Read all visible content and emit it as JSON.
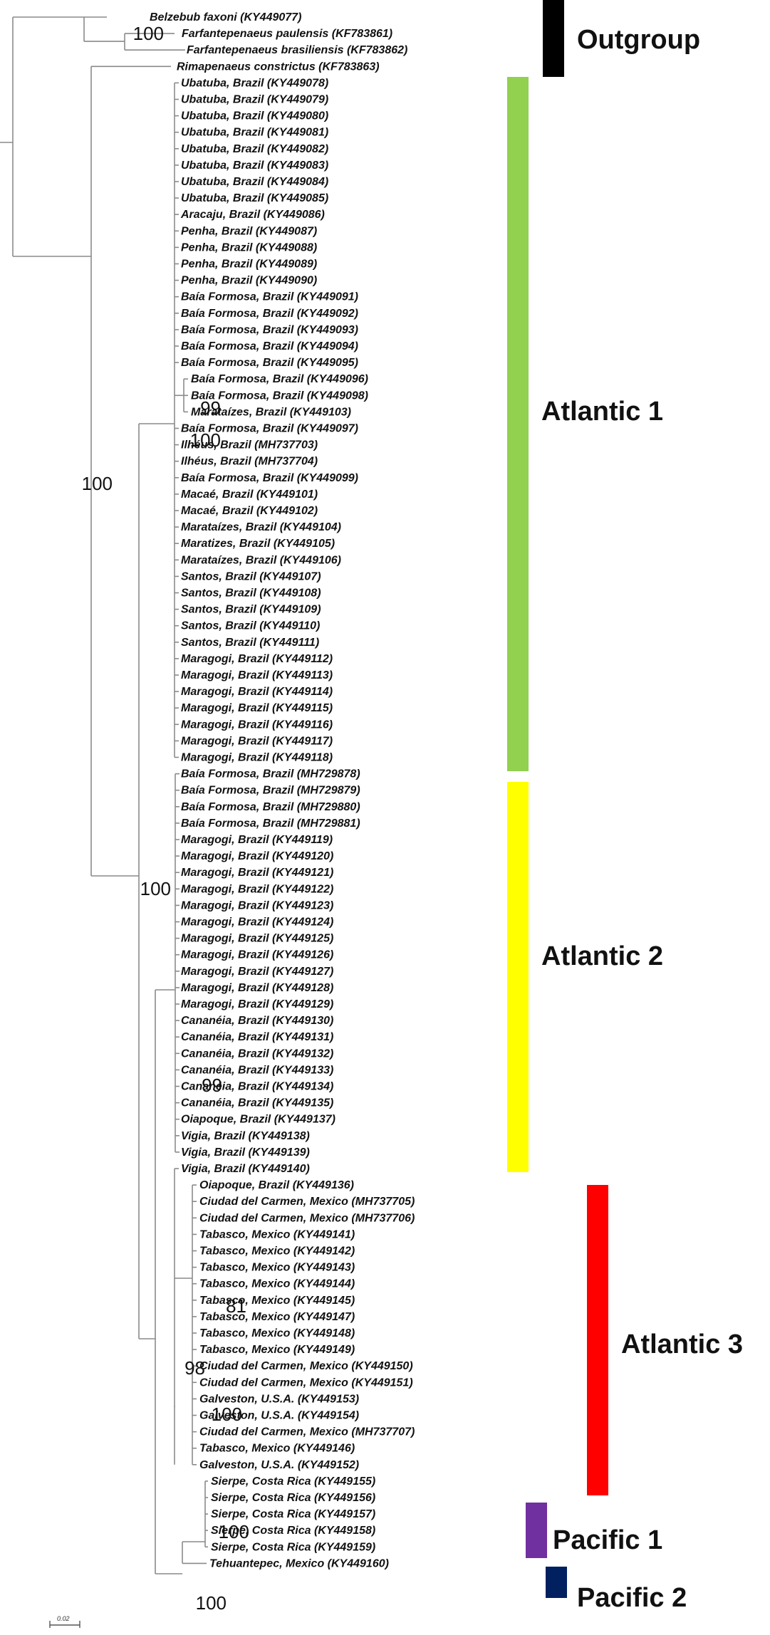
{
  "taxa": [
    "Belzebub faxoni (KY449077)",
    "Farfantepenaeus paulensis (KF783861)",
    "Farfantepenaeus brasiliensis (KF783862)",
    "Rimapenaeus constrictus (KF783863)",
    "Ubatuba, Brazil (KY449078)",
    "Ubatuba, Brazil (KY449079)",
    "Ubatuba, Brazil (KY449080)",
    "Ubatuba, Brazil (KY449081)",
    "Ubatuba, Brazil (KY449082)",
    "Ubatuba, Brazil (KY449083)",
    "Ubatuba, Brazil (KY449084)",
    "Ubatuba, Brazil (KY449085)",
    "Aracaju, Brazil (KY449086)",
    "Penha, Brazil (KY449087)",
    "Penha, Brazil (KY449088)",
    "Penha, Brazil (KY449089)",
    "Penha, Brazil (KY449090)",
    "Baía Formosa, Brazil (KY449091)",
    "Baía Formosa, Brazil (KY449092)",
    "Baía Formosa, Brazil (KY449093)",
    "Baía Formosa, Brazil (KY449094)",
    "Baía Formosa, Brazil (KY449095)",
    "Baía Formosa, Brazil (KY449096)",
    "Baía Formosa, Brazil (KY449098)",
    "Marataízes, Brazil (KY449103)",
    "Baía Formosa, Brazil (KY449097)",
    "Ilhéus, Brazil (MH737703)",
    "Ilhéus, Brazil (MH737704)",
    "Baía Formosa, Brazil (KY449099)",
    "Macaé, Brazil (KY449101)",
    "Macaé, Brazil (KY449102)",
    "Marataízes, Brazil (KY449104)",
    "Maratizes, Brazil (KY449105)",
    "Marataízes, Brazil (KY449106)",
    "Santos, Brazil (KY449107)",
    "Santos, Brazil (KY449108)",
    "Santos, Brazil (KY449109)",
    "Santos, Brazil (KY449110)",
    "Santos, Brazil (KY449111)",
    "Maragogi, Brazil (KY449112)",
    "Maragogi, Brazil (KY449113)",
    "Maragogi, Brazil (KY449114)",
    "Maragogi, Brazil (KY449115)",
    "Maragogi, Brazil (KY449116)",
    "Maragogi, Brazil (KY449117)",
    "Maragogi, Brazil (KY449118)",
    "Baía Formosa, Brazil (MH729878)",
    "Baía Formosa, Brazil (MH729879)",
    "Baía Formosa, Brazil (MH729880)",
    "Baía Formosa, Brazil (MH729881)",
    "Maragogi, Brazil (KY449119)",
    "Maragogi, Brazil (KY449120)",
    "Maragogi, Brazil (KY449121)",
    "Maragogi, Brazil (KY449122)",
    "Maragogi, Brazil (KY449123)",
    "Maragogi, Brazil (KY449124)",
    "Maragogi, Brazil (KY449125)",
    "Maragogi, Brazil (KY449126)",
    "Maragogi, Brazil (KY449127)",
    "Maragogi, Brazil (KY449128)",
    "Maragogi, Brazil (KY449129)",
    "Cananéia, Brazil (KY449130)",
    "Cananéia, Brazil (KY449131)",
    "Cananéia, Brazil (KY449132)",
    "Cananéia, Brazil (KY449133)",
    "Cananéia, Brazil (KY449134)",
    "Cananéia, Brazil (KY449135)",
    "Oiapoque, Brazil (KY449137)",
    "Vigia, Brazil (KY449138)",
    "Vigia, Brazil (KY449139)",
    "Vigia, Brazil (KY449140)",
    "Oiapoque, Brazil (KY449136)",
    "Ciudad del Carmen, Mexico (MH737705)",
    "Ciudad del Carmen, Mexico (MH737706)",
    "Tabasco, Mexico (KY449141)",
    "Tabasco, Mexico (KY449142)",
    "Tabasco, Mexico (KY449143)",
    "Tabasco, Mexico (KY449144)",
    "Tabasco, Mexico (KY449145)",
    "Tabasco, Mexico (KY449147)",
    "Tabasco, Mexico (KY449148)",
    "Tabasco, Mexico (KY449149)",
    "Ciudad del Carmen, Mexico (KY449150)",
    "Ciudad del Carmen, Mexico (KY449151)",
    "Galveston, U.S.A. (KY449153)",
    "Galveston, U.S.A. (KY449154)",
    "Ciudad del Carmen, Mexico (MH737707)",
    "Tabasco, Mexico (KY449146)",
    "Galveston, U.S.A. (KY449152)",
    "Sierpe, Costa Rica (KY449155)",
    "Sierpe, Costa Rica (KY449156)",
    "Sierpe, Costa Rica (KY449157)",
    "Sierpe, Costa Rica (KY449158)",
    "Sierpe, Costa Rica (KY449159)",
    "Tehuantepec, Mexico (KY449160)"
  ],
  "support_values": [
    {
      "node": "farfantepenaeus",
      "value": "100"
    },
    {
      "node": "ingroup-root",
      "value": "100"
    },
    {
      "node": "atlantic1",
      "value": "100"
    },
    {
      "node": "atlantic1-sub",
      "value": "99"
    },
    {
      "node": "atlantic-main",
      "value": "100"
    },
    {
      "node": "atlantic2",
      "value": "99"
    },
    {
      "node": "atlantic3-pacific",
      "value": "98"
    },
    {
      "node": "atlantic3-sub",
      "value": "81"
    },
    {
      "node": "atlantic3",
      "value": "100"
    },
    {
      "node": "pacific1",
      "value": "100"
    },
    {
      "node": "pacific",
      "value": "100"
    }
  ],
  "clades": [
    {
      "name": "Outgroup",
      "color": "#000000"
    },
    {
      "name": "Atlantic 1",
      "color": "#92d050"
    },
    {
      "name": "Atlantic 2",
      "color": "#ffff00"
    },
    {
      "name": "Atlantic 3",
      "color": "#ff0000"
    },
    {
      "name": "Pacific 1",
      "color": "#7030a0"
    },
    {
      "name": "Pacific 2",
      "color": "#002060"
    }
  ],
  "scale_bar_label": "0.02"
}
